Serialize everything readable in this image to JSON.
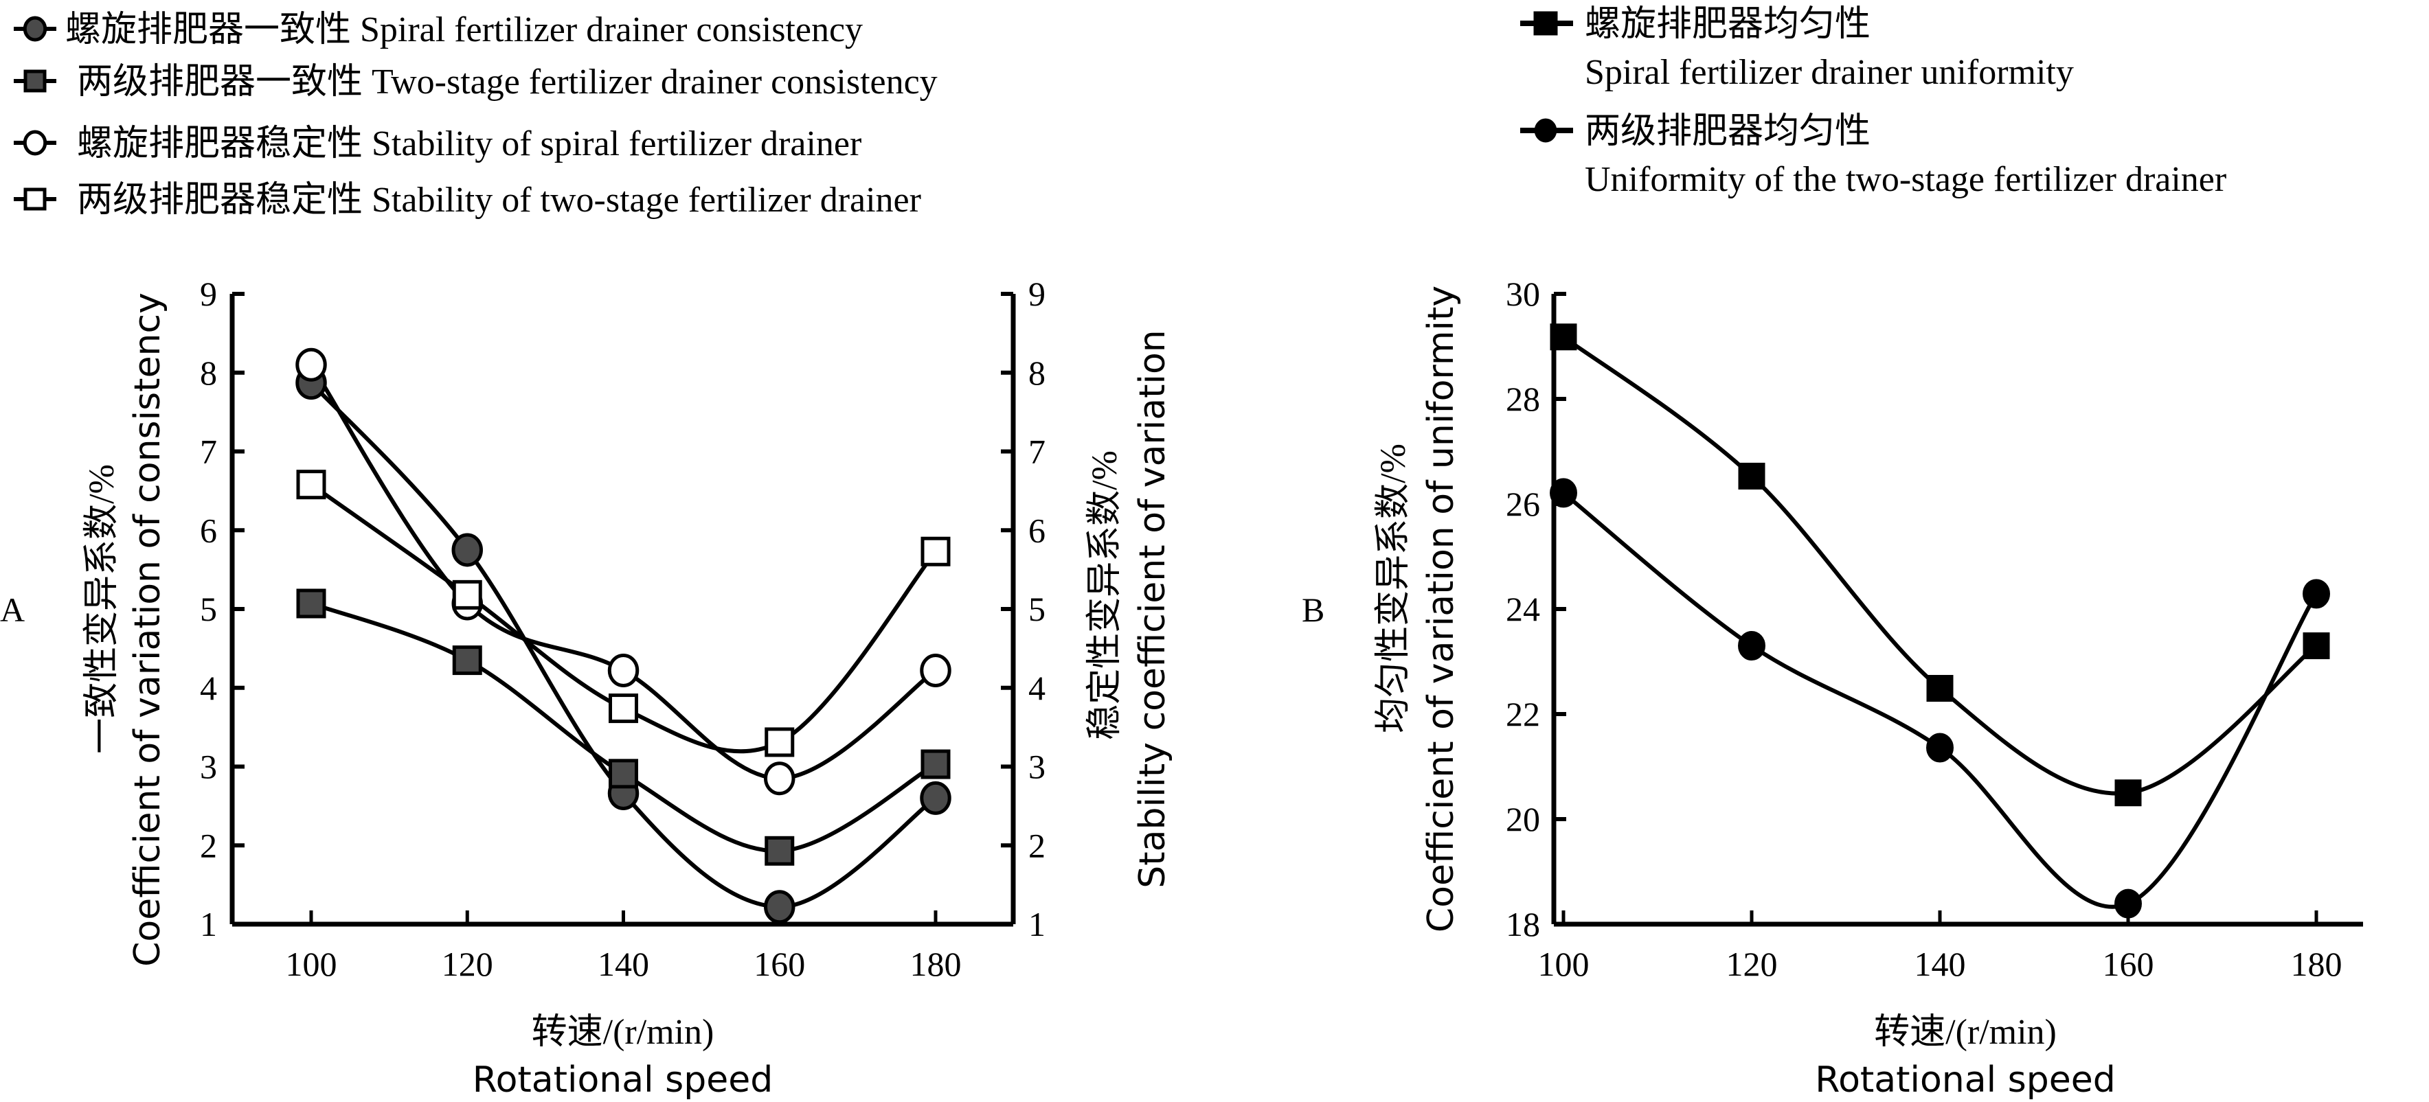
{
  "chart_data": [
    {
      "panel": "A",
      "type": "line",
      "x": [
        100,
        120,
        140,
        160,
        180
      ],
      "xlabel_cn": "转速/(r/min)",
      "xlabel_en": "Rotational speed",
      "xticks": [
        "100",
        "120",
        "140",
        "160",
        "180"
      ],
      "xlim": [
        90,
        190
      ],
      "ylabel_left_cn": "一致性变异系数/%",
      "ylabel_left_en": "Coefficient of variation of consistency",
      "ylabel_right_cn": "稳定性变异系数/%",
      "ylabel_right_en": "Stability coefficient of variation",
      "ylim": [
        1,
        9
      ],
      "yticks": [
        "1",
        "2",
        "3",
        "4",
        "5",
        "6",
        "7",
        "8",
        "9"
      ],
      "grid": false,
      "legend_position": "top-left",
      "series": [
        {
          "name": "螺旋排肥器一致性 Spiral fertilizer drainer consistency",
          "marker": "circle-filled",
          "fill": "#4a4a4a",
          "values": [
            7.87,
            5.75,
            2.66,
            1.22,
            2.6
          ]
        },
        {
          "name": "两级排肥器一致性 Two-stage fertilizer drainer consistency",
          "marker": "square-filled",
          "fill": "#4a4a4a",
          "values": [
            5.07,
            4.35,
            2.91,
            1.93,
            3.03
          ]
        },
        {
          "name": "螺旋排肥器稳定性 Stability of spiral fertilizer drainer",
          "marker": "circle-open",
          "fill": "#ffffff",
          "values": [
            8.1,
            5.07,
            4.22,
            2.85,
            4.22
          ]
        },
        {
          "name": "两级排肥器稳定性 Stability of two-stage fertilizer drainer",
          "marker": "square-open",
          "fill": "#ffffff",
          "values": [
            6.58,
            5.18,
            3.74,
            3.31,
            5.73
          ]
        }
      ]
    },
    {
      "panel": "B",
      "type": "line",
      "x": [
        100,
        120,
        140,
        160,
        180
      ],
      "xlabel_cn": "转速/(r/min)",
      "xlabel_en": "Rotational speed",
      "xticks": [
        "100",
        "120",
        "140",
        "160",
        "180"
      ],
      "xlim": [
        100,
        185
      ],
      "ylabel_cn": "均匀性变异系数/%",
      "ylabel_en": "Coefficient of variation of uniformity",
      "ylim": [
        18,
        30
      ],
      "yticks": [
        "18",
        "20",
        "22",
        "24",
        "26",
        "28",
        "30"
      ],
      "grid": false,
      "legend_position": "top",
      "series": [
        {
          "name_cn": "螺旋排肥器均匀性",
          "name_en": "Spiral fertilizer drainer uniformity",
          "marker": "square-filled",
          "fill": "#000000",
          "values": [
            29.18,
            26.53,
            22.49,
            20.5,
            23.3
          ]
        },
        {
          "name_cn": "两级排肥器均匀性",
          "name_en": "Uniformity of the two-stage fertilizer drainer",
          "marker": "circle-filled",
          "fill": "#000000",
          "values": [
            26.21,
            23.3,
            21.36,
            18.39,
            24.29
          ]
        }
      ]
    }
  ]
}
